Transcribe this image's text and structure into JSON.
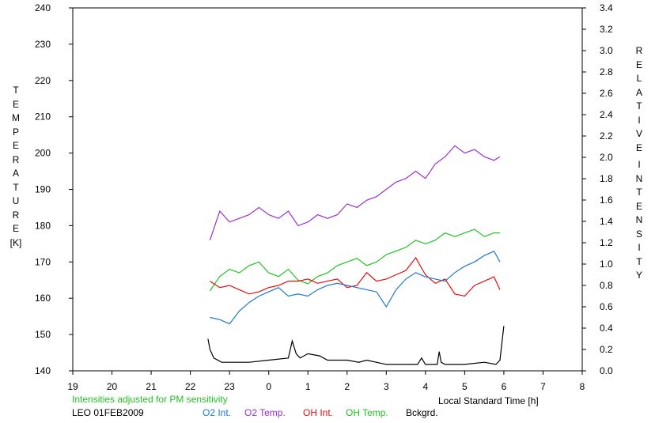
{
  "chart_data": {
    "type": "line",
    "xlabel": "Local Standard Time [h]",
    "ylabel_left": "TEMPERATURE [K]",
    "ylabel_right": "RELATIVE INTENSITY",
    "x_ticks": [
      "19",
      "20",
      "21",
      "22",
      "23",
      "0",
      "1",
      "2",
      "3",
      "4",
      "5",
      "6",
      "7",
      "8"
    ],
    "x_tick_values": [
      19,
      20,
      21,
      22,
      23,
      24,
      25,
      26,
      27,
      28,
      29,
      30,
      31,
      32
    ],
    "xlim": [
      19,
      32
    ],
    "ylim_left": [
      140,
      240
    ],
    "y_ticks_left": [
      140,
      150,
      160,
      170,
      180,
      190,
      200,
      210,
      220,
      230,
      240
    ],
    "ylim_right": [
      0.0,
      3.4
    ],
    "y_ticks_right": [
      "0.0",
      "0.2",
      "0.4",
      "0.6",
      "0.8",
      "1.0",
      "1.2",
      "1.4",
      "1.6",
      "1.8",
      "2.0",
      "2.2",
      "2.4",
      "2.6",
      "2.8",
      "3.0",
      "3.2",
      "3.4"
    ],
    "series": [
      {
        "name": "O2 Temp.",
        "axis": "left",
        "color": "#9b30d0",
        "x": [
          22.5,
          22.75,
          23.0,
          23.25,
          23.5,
          23.75,
          24.0,
          24.25,
          24.5,
          24.75,
          25.0,
          25.25,
          25.5,
          25.75,
          26.0,
          26.25,
          26.5,
          26.75,
          27.0,
          27.25,
          27.5,
          27.75,
          28.0,
          28.25,
          28.5,
          28.75,
          29.0,
          29.25,
          29.5,
          29.75,
          29.9
        ],
        "y": [
          176,
          184,
          181,
          182,
          183,
          185,
          183,
          182,
          184,
          180,
          181,
          183,
          182,
          183,
          186,
          185,
          187,
          188,
          190,
          192,
          193,
          195,
          193,
          197,
          199,
          202,
          200,
          201,
          199,
          198,
          199
        ]
      },
      {
        "name": "OH Temp.",
        "axis": "left",
        "color": "#22c322",
        "x": [
          22.5,
          22.75,
          23.0,
          23.25,
          23.5,
          23.75,
          24.0,
          24.25,
          24.5,
          24.75,
          25.0,
          25.25,
          25.5,
          25.75,
          26.0,
          26.25,
          26.5,
          26.75,
          27.0,
          27.25,
          27.5,
          27.75,
          28.0,
          28.25,
          28.5,
          28.75,
          29.0,
          29.25,
          29.5,
          29.75,
          29.9
        ],
        "y": [
          162,
          166,
          168,
          167,
          169,
          170,
          167,
          166,
          168,
          165,
          164,
          166,
          167,
          169,
          170,
          171,
          169,
          170,
          172,
          173,
          174,
          176,
          175,
          176,
          178,
          177,
          178,
          179,
          177,
          178,
          178
        ]
      },
      {
        "name": "OH Int.",
        "axis": "right",
        "color": "#e01010",
        "x": [
          22.5,
          22.75,
          23.0,
          23.25,
          23.5,
          23.75,
          24.0,
          24.25,
          24.5,
          24.75,
          25.0,
          25.25,
          25.5,
          25.75,
          26.0,
          26.25,
          26.5,
          26.75,
          27.0,
          27.25,
          27.5,
          27.75,
          28.0,
          28.25,
          28.5,
          28.75,
          29.0,
          29.25,
          29.5,
          29.75,
          29.9
        ],
        "y": [
          0.84,
          0.78,
          0.8,
          0.76,
          0.72,
          0.74,
          0.78,
          0.8,
          0.84,
          0.84,
          0.86,
          0.82,
          0.84,
          0.86,
          0.78,
          0.8,
          0.92,
          0.84,
          0.86,
          0.9,
          0.94,
          1.06,
          0.9,
          0.82,
          0.86,
          0.72,
          0.7,
          0.8,
          0.84,
          0.88,
          0.76
        ]
      },
      {
        "name": "O2 Int.",
        "axis": "right",
        "color": "#1f78d0",
        "x": [
          22.5,
          22.75,
          23.0,
          23.25,
          23.5,
          23.75,
          24.0,
          24.25,
          24.5,
          24.75,
          25.0,
          25.25,
          25.5,
          25.75,
          26.0,
          26.25,
          26.5,
          26.75,
          27.0,
          27.25,
          27.5,
          27.75,
          28.0,
          28.25,
          28.5,
          28.75,
          29.0,
          29.25,
          29.5,
          29.75,
          29.9
        ],
        "y": [
          0.5,
          0.48,
          0.44,
          0.56,
          0.64,
          0.7,
          0.74,
          0.78,
          0.7,
          0.72,
          0.7,
          0.76,
          0.8,
          0.82,
          0.8,
          0.78,
          0.76,
          0.74,
          0.6,
          0.76,
          0.86,
          0.92,
          0.88,
          0.86,
          0.84,
          0.92,
          0.98,
          1.02,
          1.08,
          1.12,
          1.02
        ]
      },
      {
        "name": "Bckgrd.",
        "axis": "right",
        "color": "#000000",
        "x": [
          22.45,
          22.5,
          22.6,
          22.8,
          23.0,
          23.5,
          24.0,
          24.5,
          24.6,
          24.7,
          24.8,
          25.0,
          25.3,
          25.5,
          26.0,
          26.3,
          26.5,
          27.0,
          27.5,
          27.8,
          27.9,
          28.0,
          28.3,
          28.35,
          28.4,
          28.5,
          29.0,
          29.5,
          29.8,
          29.9,
          30.0
        ],
        "y": [
          0.3,
          0.2,
          0.12,
          0.08,
          0.08,
          0.08,
          0.1,
          0.12,
          0.28,
          0.16,
          0.12,
          0.16,
          0.14,
          0.1,
          0.1,
          0.08,
          0.1,
          0.06,
          0.06,
          0.06,
          0.12,
          0.06,
          0.06,
          0.18,
          0.08,
          0.06,
          0.06,
          0.08,
          0.06,
          0.1,
          0.42
        ]
      }
    ],
    "grid": false,
    "legend_placement": "bottom"
  },
  "annotation": "Intensities adjusted for PM sensitivity",
  "station": "LEO 01FEB2009",
  "legend": {
    "o2_int": "O2 Int.",
    "o2_temp": "O2 Temp.",
    "oh_int": "OH Int.",
    "oh_temp": "OH Temp.",
    "bckgrd": "Bckgrd."
  },
  "left_axis_letters": [
    "T",
    "E",
    "M",
    "P",
    "E",
    "R",
    "A",
    "T",
    "U",
    "R",
    "E"
  ],
  "left_axis_unit": "[K]",
  "right_axis_word1": [
    "R",
    "E",
    "L",
    "A",
    "T",
    "I",
    "V",
    "E"
  ],
  "right_axis_word2": [
    "I",
    "N",
    "T",
    "E",
    "N",
    "S",
    "I",
    "T",
    "Y"
  ],
  "colors": {
    "o2_int": "#1f78d0",
    "o2_temp": "#9b30d0",
    "oh_int": "#e01010",
    "oh_temp": "#22c322",
    "bckgrd": "#000000",
    "annotation": "#22c322"
  }
}
